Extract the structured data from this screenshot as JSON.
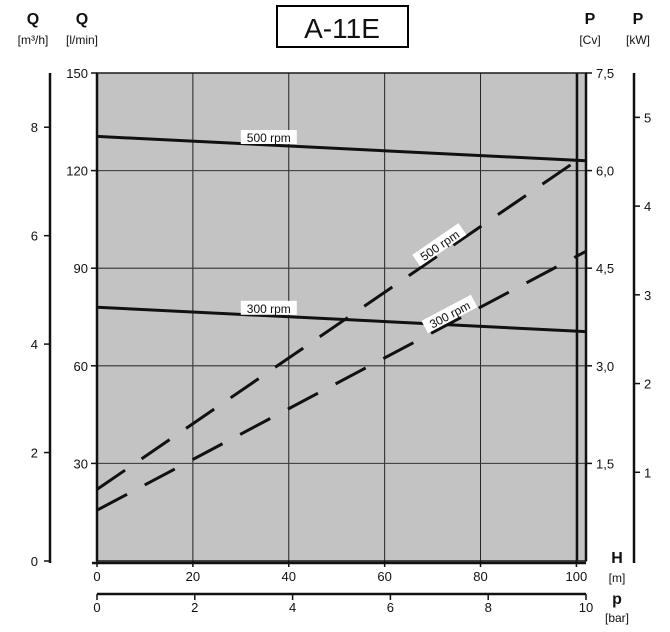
{
  "chart_data": {
    "type": "line",
    "title": "A-11E",
    "header_left": {
      "q_m3h": {
        "symbol": "Q",
        "unit": "[m³/h]"
      },
      "q_lmin": {
        "symbol": "Q",
        "unit": "[l/min]"
      }
    },
    "header_right": {
      "p_cv": {
        "symbol": "P",
        "unit": "[Cv]"
      },
      "p_kw": {
        "symbol": "P",
        "unit": "[kW]"
      }
    },
    "x_axis_h": {
      "symbol": "H",
      "unit": "[m]",
      "range": [
        0,
        102
      ],
      "ticks": [
        0,
        20,
        40,
        60,
        80,
        100
      ]
    },
    "x_axis_p": {
      "symbol": "p",
      "unit": "[bar]",
      "range": [
        0,
        10
      ],
      "ticks": [
        0,
        2,
        4,
        6,
        8,
        10
      ]
    },
    "y_axis_flow_lmin": {
      "range": [
        0,
        150
      ],
      "ticks": [
        30,
        60,
        90,
        120,
        150
      ]
    },
    "y_axis_flow_m3h": {
      "range": [
        0,
        9
      ],
      "ticks": [
        0,
        2,
        4,
        6,
        8
      ]
    },
    "y_axis_power_cv": {
      "range": [
        0,
        7.5
      ],
      "ticks": [
        "1,5",
        "3,0",
        "4,5",
        "6,0",
        "7,5"
      ],
      "tick_values": [
        1.5,
        3.0,
        4.5,
        6.0,
        7.5
      ]
    },
    "y_axis_power_kw": {
      "range": [
        0,
        5.5
      ],
      "ticks": [
        1,
        2,
        3,
        4,
        5
      ]
    },
    "grid": true,
    "series": [
      {
        "name": "500 rpm",
        "kind": "flow",
        "axis": "l/min",
        "style": "solid",
        "x": [
          0,
          102
        ],
        "y": [
          130.5,
          123.0
        ]
      },
      {
        "name": "300 rpm",
        "kind": "flow",
        "axis": "l/min",
        "style": "solid",
        "x": [
          0,
          102
        ],
        "y": [
          78.0,
          70.5
        ]
      },
      {
        "name": "500 rpm",
        "kind": "power",
        "axis": "Cv",
        "style": "dashed",
        "x": [
          0,
          102
        ],
        "y": [
          1.1,
          6.25
        ]
      },
      {
        "name": "300 rpm",
        "kind": "power",
        "axis": "Cv",
        "style": "dashed",
        "x": [
          0,
          102
        ],
        "y": [
          0.78,
          4.76
        ]
      }
    ]
  }
}
